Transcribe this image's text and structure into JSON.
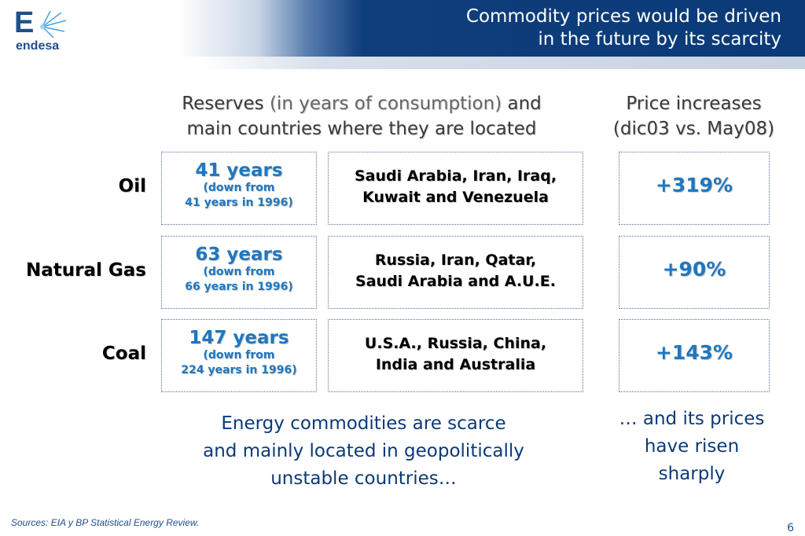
{
  "header": {
    "title_line1": "Commodity prices would be driven",
    "title_line2": "in the future by its scarcity",
    "logo_mark": "E",
    "logo_text": "endesa",
    "colors": {
      "navy": "#0b3a78",
      "accent_blue": "#1f77bf"
    }
  },
  "columns": {
    "reserves_word": "Reserves",
    "reserves_paren": "(in years of consumption)",
    "reserves_and": "and",
    "reserves_line2": "main countries where they are located",
    "price_line1": "Price increases",
    "price_line2": "(dic03 vs. May08)"
  },
  "rows": [
    {
      "label": "Oil",
      "years": "41 years",
      "down_from": "(down from",
      "prior": "41 years in 1996)",
      "countries_line1": "Saudi Arabia, Iran, Iraq,",
      "countries_line2": "Kuwait and Venezuela",
      "increase": "+319%"
    },
    {
      "label": "Natural Gas",
      "years": "63 years",
      "down_from": "(down from",
      "prior": "66 years in 1996)",
      "countries_line1": "Russia, Iran, Qatar,",
      "countries_line2": "Saudi Arabia and A.U.E.",
      "increase": "+90%"
    },
    {
      "label": "Coal",
      "years": "147 years",
      "down_from": "(down from",
      "prior": "224 years in 1996)",
      "countries_line1": "U.S.A., Russia, China,",
      "countries_line2": "India and Australia",
      "increase": "+143%"
    }
  ],
  "conclusions": {
    "left_line1": "Energy commodities are scarce",
    "left_line2": "and mainly located in geopolitically",
    "left_line3": "unstable countries…",
    "right_line1": "… and its prices",
    "right_line2": "have risen",
    "right_line3": "sharply"
  },
  "footer": {
    "sources": "Sources:  EIA y BP Statistical Energy Review.",
    "page_number": "6"
  }
}
